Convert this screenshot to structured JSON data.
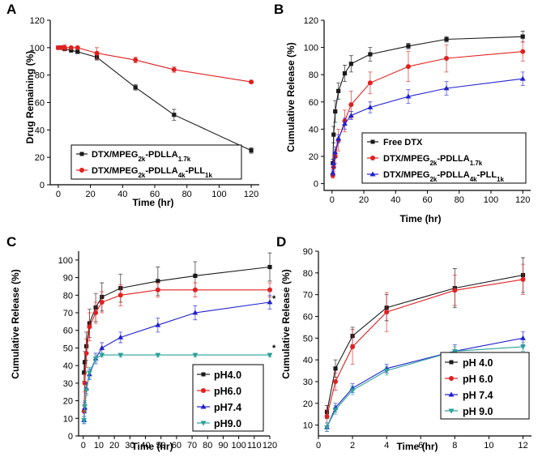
{
  "colors": {
    "black": "#1a1a1a",
    "red": "#e02020",
    "blue": "#2020d0",
    "teal": "#2aa198"
  },
  "chart_data": [
    {
      "panel": "A",
      "type": "line",
      "xlabel": "Time (hr)",
      "ylabel": "Drug Remaining (%)",
      "xlim": [
        -5,
        125
      ],
      "ylim": [
        0,
        120
      ],
      "xticks": [
        "0",
        "20",
        "40",
        "60",
        "80",
        "100",
        "120"
      ],
      "yticks": [
        "0",
        "20",
        "40",
        "60",
        "80",
        "100",
        "120"
      ],
      "legend_pos": "bottom-left",
      "series": [
        {
          "name": "DTX/MPEG2k-PDLLA1.7k",
          "base": "DTX/MPEG",
          "sub1": "2k",
          "mid": "-PDLLA",
          "sub2": "1.7k",
          "tail": "",
          "sub3": "",
          "color": "black",
          "marker": "square",
          "x": [
            0,
            2,
            4,
            8,
            12,
            24,
            48,
            72,
            120
          ],
          "y": [
            100,
            100,
            99,
            98,
            97,
            93,
            71,
            51,
            25
          ],
          "err": [
            1,
            1,
            1,
            1,
            1,
            2,
            2,
            4,
            2
          ]
        },
        {
          "name": "DTX/MPEG2k-PDLLA4k-PLL1k",
          "base": "DTX/MPEG",
          "sub1": "2k",
          "mid": "-PDLLA",
          "sub2": "4k",
          "tail": "-PLL",
          "sub3": "1k",
          "color": "red",
          "marker": "circle",
          "x": [
            0,
            2,
            4,
            8,
            12,
            24,
            48,
            72,
            120
          ],
          "y": [
            100,
            100,
            100,
            100,
            100,
            96,
            91,
            84,
            75
          ],
          "err": [
            1,
            1,
            2,
            1,
            1,
            4,
            2,
            2,
            1
          ]
        }
      ]
    },
    {
      "panel": "B",
      "type": "line",
      "xlabel": "Time (hr)",
      "ylabel": "Cumulative Release (%)",
      "xlim": [
        -5,
        125
      ],
      "ylim": [
        -5,
        120
      ],
      "xticks": [
        "0",
        "20",
        "40",
        "60",
        "80",
        "100",
        "120"
      ],
      "yticks": [
        "0",
        "20",
        "40",
        "60",
        "80",
        "100",
        "120"
      ],
      "legend_pos": "bottom-right",
      "series": [
        {
          "name": "Free DTX",
          "base": "Free DTX",
          "sub1": "",
          "mid": "",
          "sub2": "",
          "tail": "",
          "sub3": "",
          "color": "black",
          "marker": "square",
          "x": [
            0.5,
            1,
            2,
            4,
            8,
            12,
            24,
            48,
            72,
            120
          ],
          "y": [
            15,
            36,
            53,
            68,
            81,
            88,
            95,
            101,
            106,
            108
          ],
          "err": [
            3,
            6,
            8,
            6,
            6,
            6,
            5,
            2,
            2,
            4
          ]
        },
        {
          "name": "DTX/MPEG2k-PDLLA1.7k",
          "base": "DTX/MPEG",
          "sub1": "2k",
          "mid": "-PDLLA",
          "sub2": "1.7k",
          "tail": "",
          "sub3": "",
          "color": "red",
          "marker": "circle",
          "x": [
            0.5,
            1,
            2,
            4,
            8,
            12,
            24,
            48,
            72,
            120
          ],
          "y": [
            6,
            12,
            20,
            32,
            46,
            58,
            74,
            86,
            92,
            97
          ],
          "err": [
            2,
            3,
            5,
            8,
            8,
            10,
            8,
            11,
            10,
            7
          ]
        },
        {
          "name": "DTX/MPEG2k-PDLLA4k-PLL1k",
          "base": "DTX/MPEG",
          "sub1": "2k",
          "mid": "-PDLLA",
          "sub2": "4k",
          "tail": "-PLL",
          "sub3": "1k",
          "color": "blue",
          "marker": "triangle",
          "x": [
            0.5,
            1,
            2,
            4,
            8,
            12,
            24,
            48,
            72,
            120
          ],
          "y": [
            8,
            15,
            23,
            33,
            44,
            50,
            56,
            64,
            70,
            77
          ],
          "err": [
            2,
            3,
            4,
            3,
            4,
            3,
            4,
            5,
            5,
            5
          ]
        }
      ]
    },
    {
      "panel": "C",
      "type": "line",
      "xlabel": "Time (hr)",
      "ylabel": "Cumulative Release (%)",
      "xlim": [
        -3,
        120
      ],
      "ylim": [
        0,
        105
      ],
      "xticks": [
        "0",
        "10",
        "20",
        "30",
        "40",
        "50",
        "60",
        "70",
        "80",
        "90",
        "100",
        "110",
        "120"
      ],
      "yticks": [
        "0",
        "10",
        "20",
        "30",
        "40",
        "50",
        "60",
        "70",
        "80",
        "90",
        "100"
      ],
      "legend_pos": "bottom-right",
      "annotations": [
        "*",
        "*"
      ],
      "series": [
        {
          "name": "pH4.0",
          "color": "black",
          "marker": "square",
          "x": [
            0.5,
            1,
            2,
            4,
            8,
            12,
            24,
            48,
            72,
            120
          ],
          "y": [
            36,
            42,
            51,
            64,
            73,
            79,
            84,
            88,
            91,
            96
          ],
          "err": [
            5,
            6,
            8,
            8,
            8,
            8,
            8,
            8,
            8,
            8
          ]
        },
        {
          "name": "pH6.0",
          "color": "red",
          "marker": "circle",
          "x": [
            0.5,
            1,
            2,
            4,
            8,
            12,
            24,
            48,
            72,
            120
          ],
          "y": [
            14,
            30,
            47,
            62,
            70,
            76,
            80,
            83,
            83,
            83
          ],
          "err": [
            3,
            5,
            8,
            8,
            6,
            6,
            6,
            4,
            4,
            4
          ]
        },
        {
          "name": "pH7.4",
          "color": "blue",
          "marker": "triangle",
          "x": [
            0.5,
            1,
            2,
            4,
            8,
            12,
            24,
            48,
            72,
            120
          ],
          "y": [
            9,
            16,
            27,
            35,
            44,
            50,
            56,
            63,
            70,
            76
          ],
          "err": [
            2,
            3,
            3,
            3,
            3,
            3,
            3,
            4,
            4,
            4
          ]
        },
        {
          "name": "pH9.0",
          "color": "teal",
          "marker": "triangle-down",
          "x": [
            0.5,
            1,
            2,
            4,
            8,
            12,
            24,
            48,
            72,
            120
          ],
          "y": [
            9,
            17,
            26,
            36,
            44,
            46,
            46,
            46,
            46,
            46
          ],
          "err": [
            2,
            3,
            3,
            3,
            2,
            1,
            1,
            1,
            1,
            1
          ]
        }
      ]
    },
    {
      "panel": "D",
      "type": "line",
      "xlabel": "Time (hr)",
      "ylabel": "Cumulative Release (%)",
      "xlim": [
        0,
        12.5
      ],
      "ylim": [
        5,
        90
      ],
      "xticks": [
        "0",
        "2",
        "4",
        "6",
        "8",
        "10",
        "12"
      ],
      "yticks": [
        "10",
        "20",
        "30",
        "40",
        "50",
        "60",
        "70",
        "80",
        "90"
      ],
      "legend_pos": "bottom-right",
      "series": [
        {
          "name": "pH 4.0",
          "color": "black",
          "marker": "square",
          "x": [
            0.5,
            1,
            2,
            4,
            8,
            12
          ],
          "y": [
            16,
            36,
            51,
            64,
            73,
            79
          ],
          "err": [
            3,
            4,
            4,
            6,
            9,
            8
          ]
        },
        {
          "name": "pH 6.0",
          "color": "red",
          "marker": "circle",
          "x": [
            0.5,
            1,
            2,
            4,
            8,
            12
          ],
          "y": [
            14,
            30,
            46,
            62,
            72,
            77
          ],
          "err": [
            3,
            4,
            8,
            9,
            7,
            7
          ]
        },
        {
          "name": "pH 7.4",
          "color": "blue",
          "marker": "triangle",
          "x": [
            0.5,
            1,
            2,
            4,
            8,
            12
          ],
          "y": [
            9,
            18,
            27,
            36,
            44,
            50
          ],
          "err": [
            2,
            2,
            2,
            2,
            3,
            3
          ]
        },
        {
          "name": "pH 9.0",
          "color": "teal",
          "marker": "triangle-down",
          "x": [
            0.5,
            1,
            2,
            4,
            8,
            12
          ],
          "y": [
            9,
            17,
            26,
            35,
            44,
            46
          ],
          "err": [
            2,
            2,
            2,
            2,
            2,
            2
          ]
        }
      ]
    }
  ]
}
